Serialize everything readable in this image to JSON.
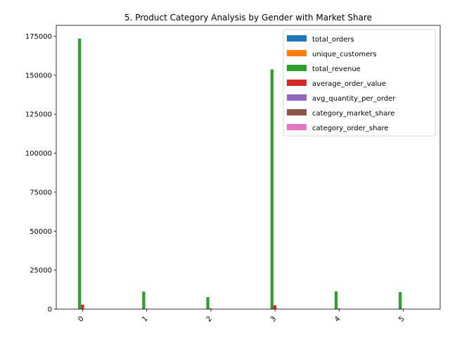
{
  "chart_data": {
    "type": "bar",
    "title": "5. Product Category Analysis by Gender with Market Share",
    "xlabel": "",
    "ylabel": "",
    "categories": [
      "0",
      "1",
      "2",
      "3",
      "4",
      "5"
    ],
    "ylim": [
      0,
      182000
    ],
    "yticks": [
      0,
      25000,
      50000,
      75000,
      100000,
      125000,
      150000,
      175000
    ],
    "ytick_labels": [
      "0",
      "25000",
      "50000",
      "75000",
      "100000",
      "125000",
      "150000",
      "175000"
    ],
    "legend_position": "upper right",
    "grid": false,
    "series": [
      {
        "name": "total_orders",
        "color": "#1f77b4",
        "values": [
          60,
          5,
          4,
          55,
          5,
          5
        ]
      },
      {
        "name": "unique_customers",
        "color": "#ff7f0e",
        "values": [
          55,
          5,
          4,
          50,
          5,
          5
        ]
      },
      {
        "name": "total_revenue",
        "color": "#2ca02c",
        "values": [
          173500,
          11200,
          7700,
          153700,
          11400,
          10900
        ]
      },
      {
        "name": "average_order_value",
        "color": "#d62728",
        "values": [
          2900,
          150,
          400,
          2500,
          350,
          120
        ]
      },
      {
        "name": "avg_quantity_per_order",
        "color": "#9467bd",
        "values": [
          3,
          2,
          2,
          3,
          2,
          2
        ]
      },
      {
        "name": "category_market_share",
        "color": "#8c564b",
        "values": [
          47,
          3,
          2,
          42,
          3,
          3
        ]
      },
      {
        "name": "category_order_share",
        "color": "#e377c2",
        "values": [
          45,
          4,
          3,
          41,
          4,
          3
        ]
      }
    ]
  }
}
